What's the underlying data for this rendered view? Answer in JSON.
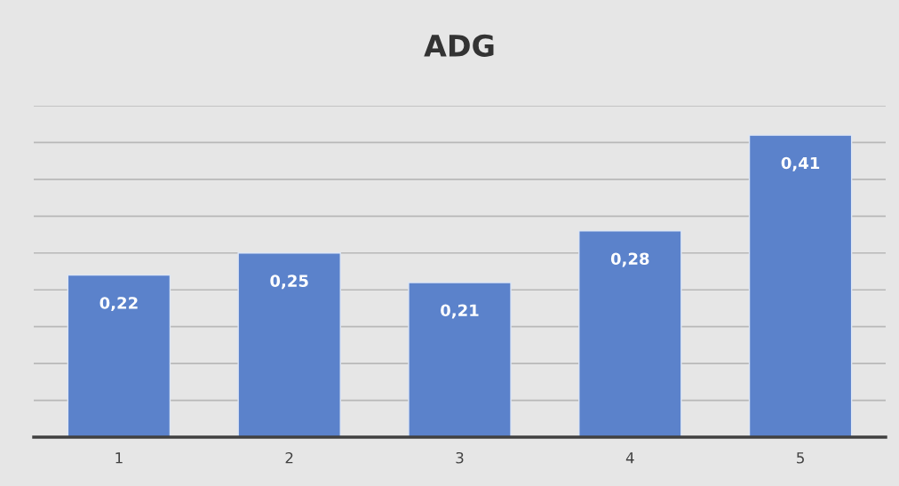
{
  "chart_data": {
    "type": "bar",
    "title": "ADG",
    "categories": [
      "1",
      "2",
      "3",
      "4",
      "5"
    ],
    "values": [
      0.22,
      0.25,
      0.21,
      0.28,
      0.41
    ],
    "value_labels": [
      "0,22",
      "0,25",
      "0,21",
      "0,28",
      "0,41"
    ],
    "color": "#5b82cb",
    "ylim": [
      0,
      0.45
    ],
    "yticks": [
      {
        "value": 0,
        "label": null
      },
      {
        "value": 0.05,
        "label": null
      },
      {
        "value": 0.1,
        "label": null
      },
      {
        "value": 0.15,
        "label": null
      },
      {
        "value": 0.2,
        "label": null
      },
      {
        "value": 0.25,
        "label": null
      },
      {
        "value": 0.3,
        "label": null
      },
      {
        "value": 0.35,
        "label": null
      },
      {
        "value": 0.4,
        "label": null
      },
      {
        "value": 0.45,
        "label": null
      }
    ],
    "grid": "y",
    "tick_labels": "x"
  }
}
